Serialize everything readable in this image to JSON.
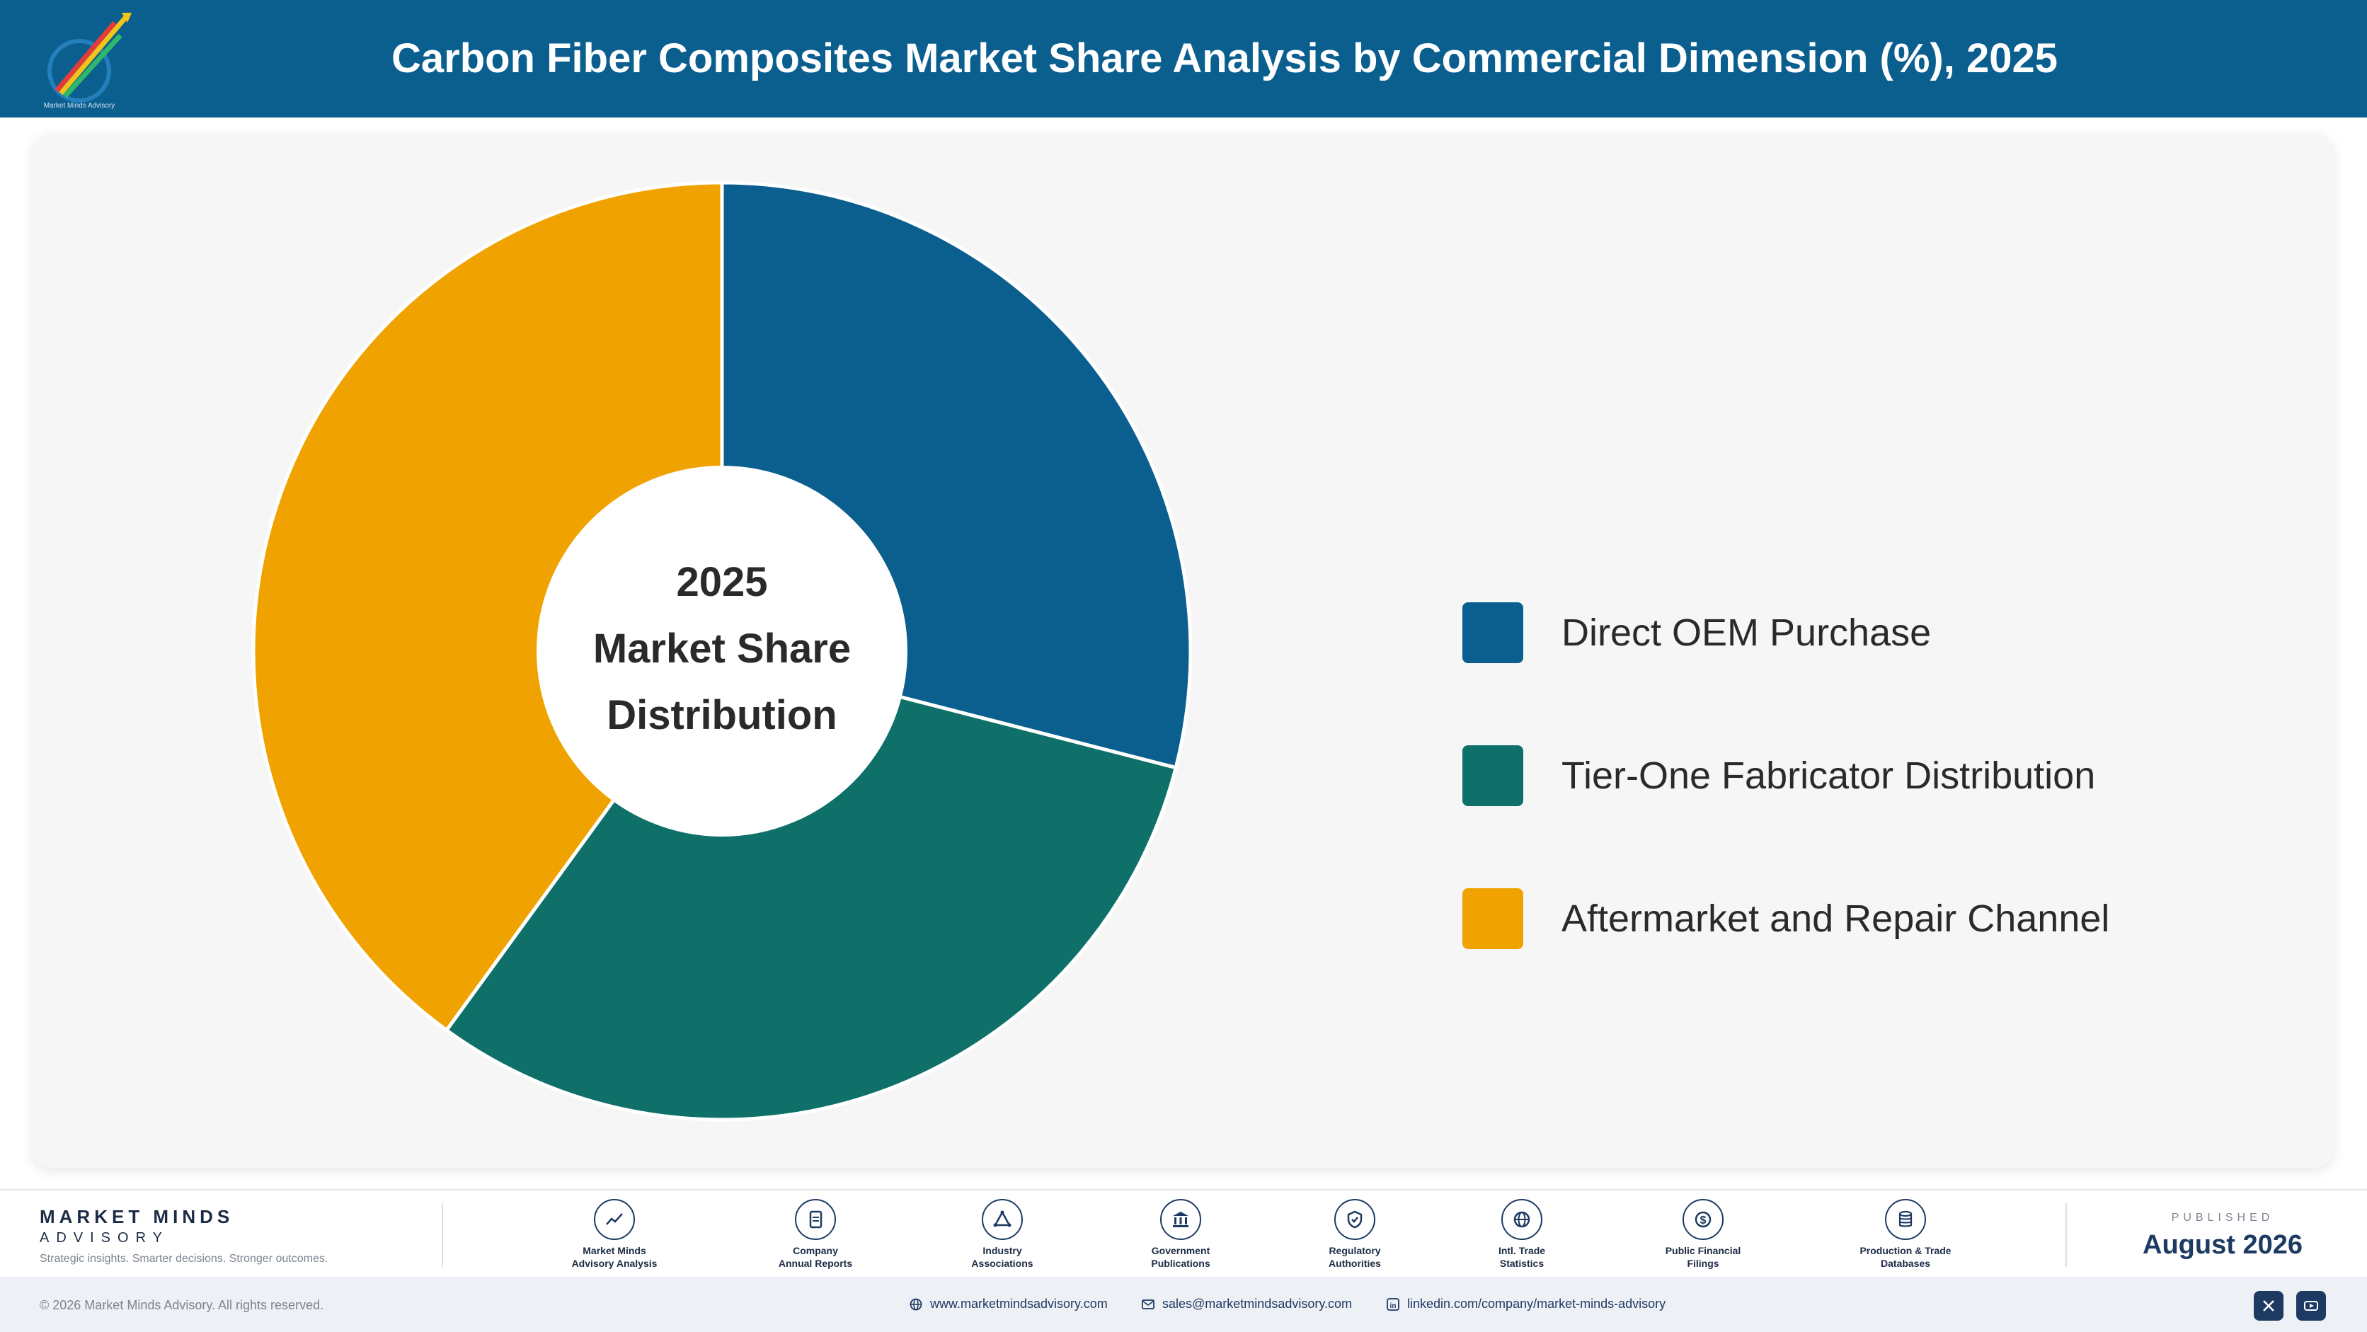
{
  "header": {
    "title": "Carbon Fiber Composites Market Share Analysis by Commercial Dimension (%), 2025"
  },
  "chart_data": {
    "type": "pie",
    "variant": "donut",
    "title": "Carbon Fiber Composites Market Share Analysis by Commercial Dimension (%), 2025",
    "center_text": [
      "2025",
      "Market Share",
      "Distribution"
    ],
    "categories": [
      "Direct OEM Purchase",
      "Tier-One Fabricator Distribution",
      "Aftermarket and Repair Channel"
    ],
    "values": [
      29,
      31,
      40
    ],
    "colors": [
      "#0b5f8f",
      "#0e7069",
      "#f0a300"
    ],
    "legend_position": "right"
  },
  "footer": {
    "brand_name": "MARKET MINDS",
    "brand_sub": "ADVISORY",
    "tagline": "Strategic insights. Smarter decisions. Stronger outcomes.",
    "sources": [
      {
        "icon": "trend-chart-icon",
        "line1": "Market Minds",
        "line2": "Advisory Analysis"
      },
      {
        "icon": "document-icon",
        "line1": "Company",
        "line2": "Annual Reports"
      },
      {
        "icon": "network-icon",
        "line1": "Industry",
        "line2": "Associations"
      },
      {
        "icon": "government-building-icon",
        "line1": "Government",
        "line2": "Publications"
      },
      {
        "icon": "shield-check-icon",
        "line1": "Regulatory",
        "line2": "Authorities"
      },
      {
        "icon": "globe-icon",
        "line1": "Intl. Trade",
        "line2": "Statistics"
      },
      {
        "icon": "dollar-coin-icon",
        "line1": "Public Financial",
        "line2": "Filings"
      },
      {
        "icon": "database-icon",
        "line1": "Production & Trade",
        "line2": "Databases"
      }
    ],
    "published_label": "PUBLISHED",
    "published_date": "August 2026"
  },
  "bottom_bar": {
    "copyright": "© 2026 Market Minds Advisory. All rights reserved.",
    "website": "www.marketmindsadvisory.com",
    "email": "sales@marketmindsadvisory.com",
    "linkedin": "linkedin.com/company/market-minds-advisory"
  }
}
